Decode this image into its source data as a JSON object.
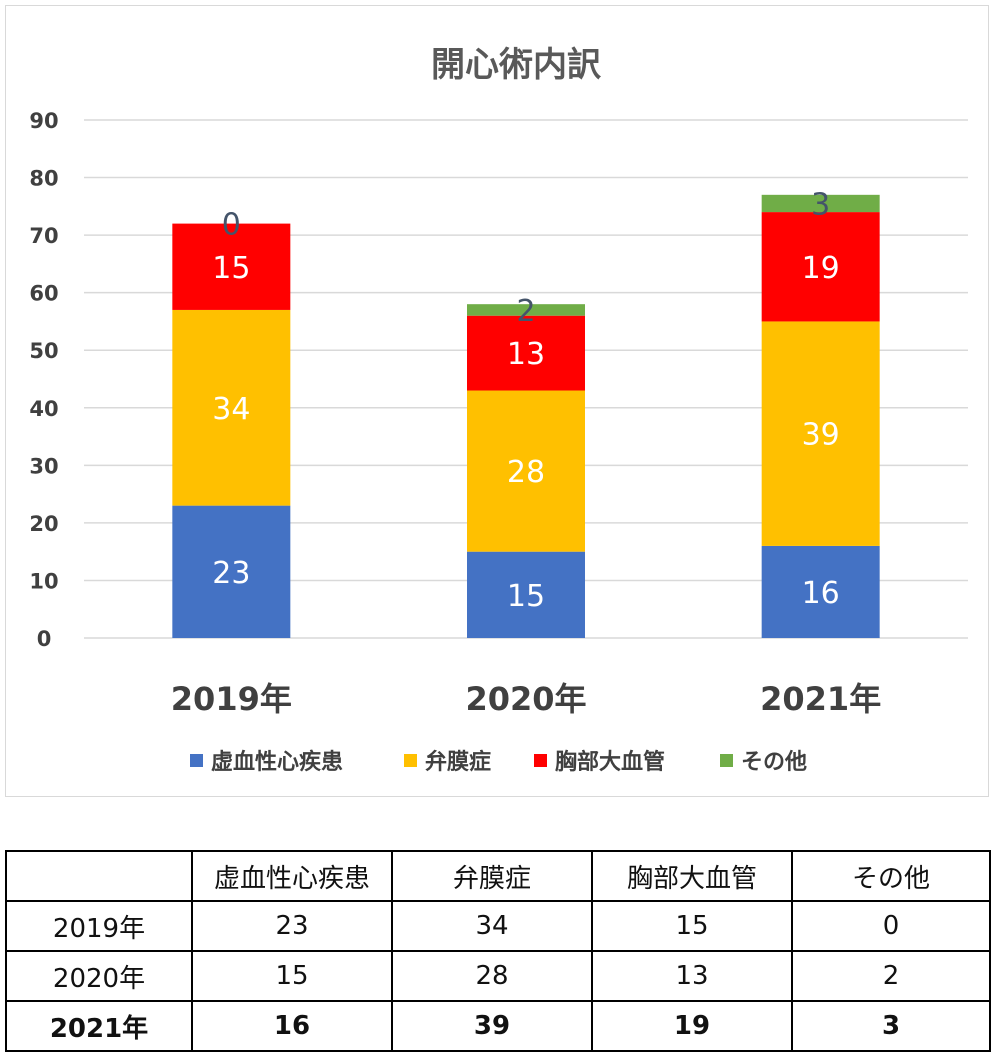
{
  "chart_data": {
    "type": "bar",
    "stacked": true,
    "title": "開心術内訳",
    "categories": [
      "2019年",
      "2020年",
      "2021年"
    ],
    "series": [
      {
        "name": "虚血性心疾患",
        "values": [
          23,
          15,
          16
        ],
        "color": "#4472c4",
        "label_color": "#ffffff"
      },
      {
        "name": "弁膜症",
        "values": [
          34,
          28,
          39
        ],
        "color": "#ffc000",
        "label_color": "#ffffff"
      },
      {
        "name": "胸部大血管",
        "values": [
          15,
          13,
          19
        ],
        "color": "#ff0000",
        "label_color": "#ffffff"
      },
      {
        "name": "その他",
        "values": [
          0,
          2,
          3
        ],
        "color": "#70ad47",
        "label_color": "#44546a"
      }
    ],
    "ylim": [
      0,
      90
    ],
    "yticks": [
      "0",
      "10",
      "20",
      "30",
      "40",
      "50",
      "60",
      "70",
      "80",
      "90"
    ],
    "grid": true,
    "legend": "bottom"
  },
  "table": {
    "headers": [
      "",
      "虚血性心疾患",
      "弁膜症",
      "胸部大血管",
      "その他"
    ],
    "rows": [
      {
        "cells": [
          "2019年",
          "23",
          "34",
          "15",
          "0"
        ],
        "bold": false
      },
      {
        "cells": [
          "2020年",
          "15",
          "28",
          "13",
          "2"
        ],
        "bold": false
      },
      {
        "cells": [
          "2021年",
          "16",
          "39",
          "19",
          "3"
        ],
        "bold": true
      }
    ]
  }
}
